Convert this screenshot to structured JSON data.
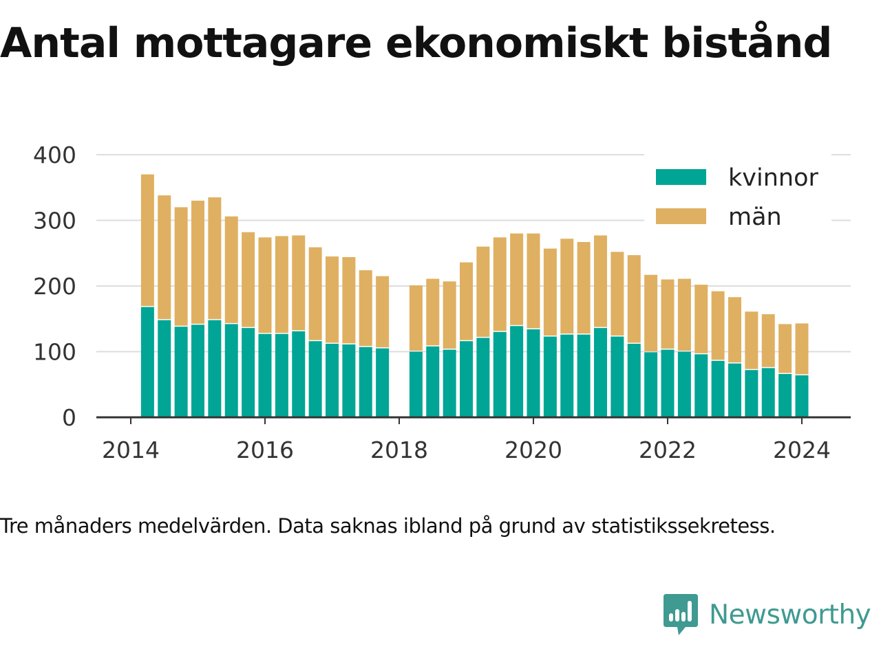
{
  "chart_data": {
    "type": "bar",
    "stacked": true,
    "title": "Antal mottagare ekonomiskt bistånd",
    "caption": "Tre månaders medelvärden. Data saknas ibland på grund av statistikssekretess.",
    "xlabel": "",
    "ylabel": "",
    "x_ticks": [
      "2014",
      "2016",
      "2018",
      "2020",
      "2022",
      "2024"
    ],
    "y_ticks": [
      "0",
      "100",
      "200",
      "300",
      "400"
    ],
    "ylim": [
      0,
      400
    ],
    "grid": true,
    "legend_position": "top-right",
    "x": [
      2014.25,
      2014.5,
      2014.75,
      2015.0,
      2015.25,
      2015.5,
      2015.75,
      2016.0,
      2016.25,
      2016.5,
      2016.75,
      2017.0,
      2017.25,
      2017.5,
      2017.75,
      2018.0,
      2018.25,
      2018.5,
      2018.75,
      2019.0,
      2019.25,
      2019.5,
      2019.75,
      2020.0,
      2020.25,
      2020.5,
      2020.75,
      2021.0,
      2021.25,
      2021.5,
      2021.75,
      2022.0,
      2022.25,
      2022.5,
      2022.75,
      2023.0,
      2023.25,
      2023.5,
      2023.75,
      2024.0
    ],
    "series": [
      {
        "name": "kvinnor",
        "color": "#00a595",
        "values": [
          168,
          148,
          138,
          141,
          148,
          142,
          136,
          127,
          127,
          131,
          116,
          112,
          111,
          107,
          105,
          null,
          100,
          108,
          103,
          116,
          121,
          130,
          139,
          134,
          123,
          126,
          126,
          136,
          123,
          112,
          99,
          103,
          100,
          96,
          86,
          82,
          72,
          75,
          66,
          64
        ]
      },
      {
        "name": "män",
        "color": "#dfb061",
        "values": [
          202,
          190,
          182,
          189,
          187,
          164,
          146,
          147,
          149,
          146,
          143,
          133,
          133,
          117,
          110,
          null,
          101,
          103,
          104,
          120,
          139,
          144,
          141,
          146,
          134,
          146,
          141,
          141,
          129,
          135,
          118,
          107,
          111,
          106,
          106,
          101,
          89,
          82,
          76,
          79
        ]
      }
    ]
  },
  "brand": {
    "name": "Newsworthy",
    "icon": "newsworthy-logo-icon",
    "color": "#3f9a91"
  }
}
